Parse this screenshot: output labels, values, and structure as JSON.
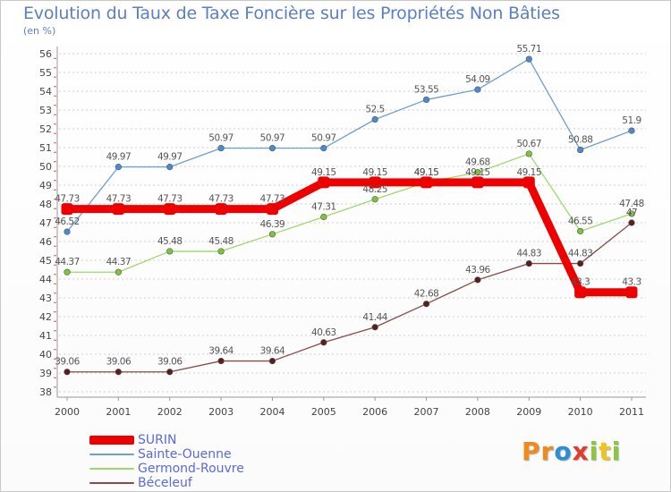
{
  "title": "Evolution du Taux de Taxe Foncière sur les Propriétés Non Bâties",
  "subtitle": "(en %)",
  "logo": {
    "letters": [
      "P",
      "r",
      "o",
      "x",
      "i",
      "t",
      "i"
    ],
    "colors": [
      "#f08a1c",
      "#f08a1c",
      "#2b8fd6",
      "#e23c2f",
      "#8cc63f",
      "#f0c419",
      "#8cc63f"
    ]
  },
  "chart_data": {
    "type": "line",
    "title": "Evolution du Taux de Taxe Foncière sur les Propriétés Non Bâties",
    "ylabel": "(en %)",
    "x": [
      "2000",
      "2001",
      "2002",
      "2003",
      "2004",
      "2005",
      "2006",
      "2007",
      "2008",
      "2009",
      "2010",
      "2011"
    ],
    "ylim": [
      38,
      56
    ],
    "yticks": [
      "38",
      "39",
      "40",
      "41",
      "42",
      "43",
      "44",
      "45",
      "46",
      "47",
      "48",
      "49",
      "50",
      "51",
      "52",
      "53",
      "54",
      "55",
      "56"
    ],
    "grid": "horizontal dotted",
    "legend_position": "bottom-left",
    "series": [
      {
        "name": "SURIN",
        "color": "#ee0000",
        "marker": "#ee0000",
        "values": [
          47.73,
          47.73,
          47.73,
          47.73,
          47.73,
          49.15,
          49.15,
          49.15,
          49.15,
          49.15,
          43.3,
          43.3
        ],
        "labels": [
          "47.73",
          "47.73",
          "47.73",
          "47.73",
          "47.73",
          "49.15",
          "49.15",
          "49.15",
          "49.15",
          "49.15",
          "43.3",
          "43.3"
        ]
      },
      {
        "name": "Sainte-Ouenne",
        "color": "#6e9fd0",
        "marker": "#4a8bd0",
        "values": [
          46.52,
          49.97,
          49.97,
          50.97,
          50.97,
          50.97,
          52.5,
          53.55,
          54.09,
          55.71,
          50.88,
          51.9
        ],
        "labels": [
          "46.52",
          "49.97",
          "49.97",
          "50.97",
          "50.97",
          "50.97",
          "52.5",
          "53.55",
          "54.09",
          "55.71",
          "50.88",
          "51.9"
        ]
      },
      {
        "name": "Germond-Rouvre",
        "color": "#9fd96a",
        "marker": "#7cc43a",
        "values": [
          44.37,
          44.37,
          45.48,
          45.48,
          46.39,
          47.31,
          48.25,
          49.15,
          49.68,
          50.67,
          46.55,
          47.48
        ],
        "labels": [
          "44.37",
          "44.37",
          "45.48",
          "45.48",
          "46.39",
          "47.31",
          "48.25",
          "49.15",
          "49.68",
          "50.67",
          "46.55",
          "47.48"
        ]
      },
      {
        "name": "Béceleuf",
        "color": "#8b4a4a",
        "marker": "#5a1e1e",
        "values": [
          39.06,
          39.06,
          39.06,
          39.64,
          39.64,
          40.63,
          41.44,
          42.68,
          43.96,
          44.83,
          44.83,
          47
        ],
        "labels": [
          "39.06",
          "39.06",
          "39.06",
          "39.64",
          "39.64",
          "40.63",
          "41.44",
          "42.68",
          "43.96",
          "44.83",
          "44.83",
          "47"
        ]
      }
    ]
  }
}
